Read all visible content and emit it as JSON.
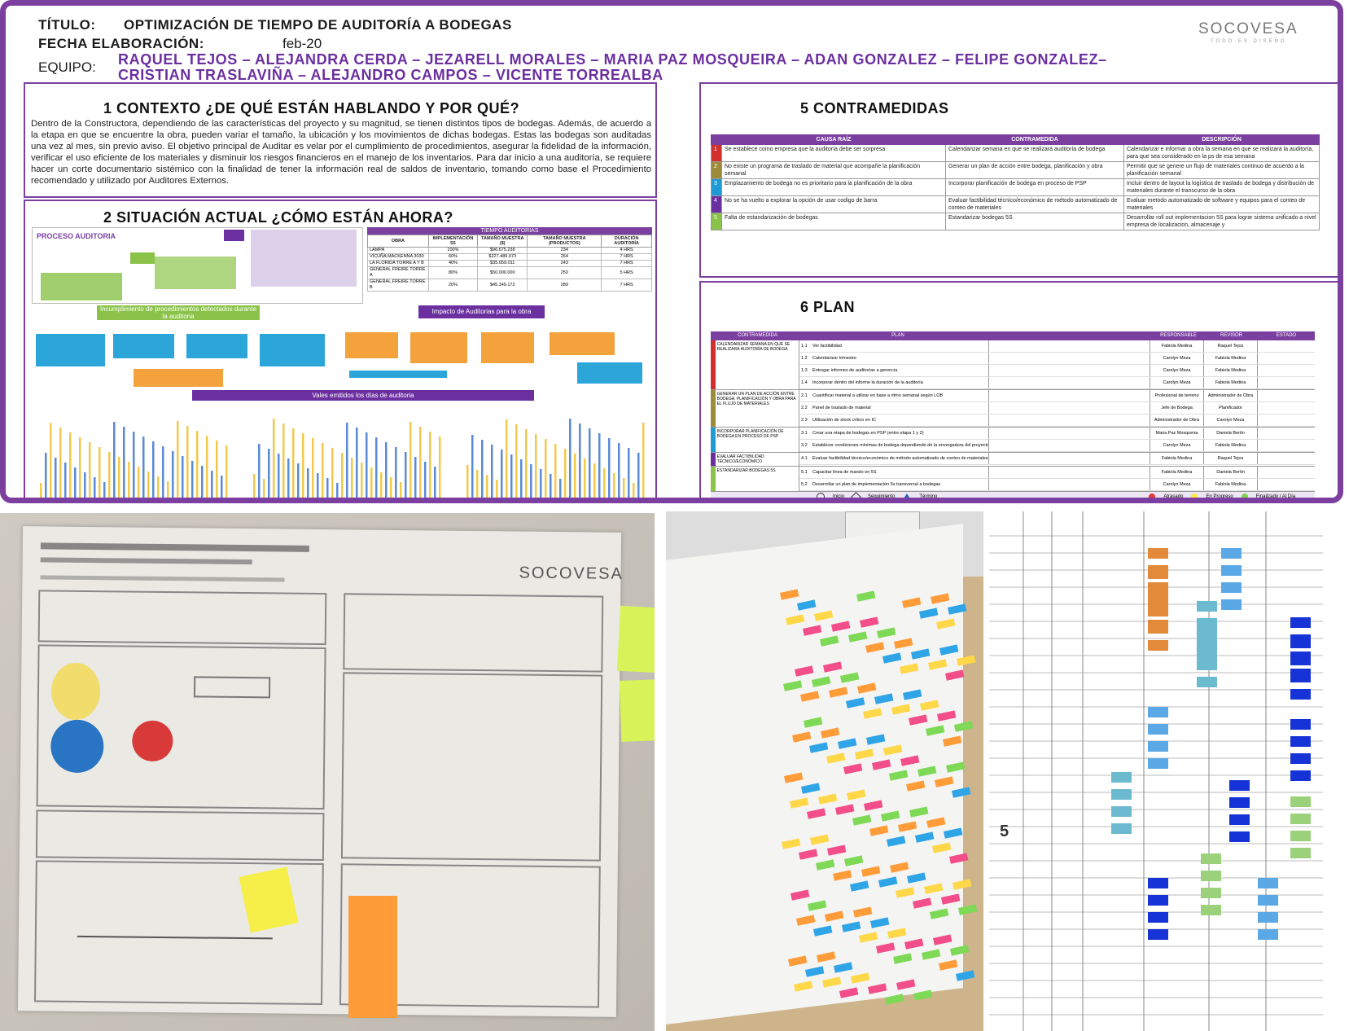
{
  "header": {
    "titulo_label": "TÍTULO:",
    "titulo_value": "OPTIMIZACIÓN DE TIEMPO DE AUDITORÍA A BODEGAS",
    "fecha_label": "FECHA ELABORACIÓN:",
    "fecha_value": "feb-20",
    "equipo_label": "EQUIPO:",
    "equipo_line1": "RAQUEL TEJOS – ALEJANDRA CERDA – JEZARELL MORALES – MARIA PAZ MOSQUEIRA – ADAN GONZALEZ – FELIPE GONZALEZ–",
    "equipo_line2": "CRISTIAN TRASLAVIÑA – ALEJANDRO CAMPOS – VICENTE TORREALBA",
    "logo": "SOCOVESA",
    "logo_sub": "TODO ES DISEÑO",
    "accent": "#7b3fa0"
  },
  "sec1": {
    "title": "1 CONTEXTO ¿DE QUÉ ESTÁN HABLANDO Y POR QUÉ?",
    "text": "Dentro de la Constructora, dependiendo de las características del proyecto y su magnitud, se tienen distintos tipos de bodegas. Además, de acuerdo a la etapa en que se encuentre la obra, pueden variar el tamaño, la ubicación y los movimientos de dichas bodegas. Estas las bodegas son auditadas una vez al mes, sin previo aviso. El objetivo principal de Auditar es velar por el cumplimiento de procedimientos, asegurar la fidelidad de la información, verificar el uso eficiente de los materiales y disminuir los riesgos financieros en el manejo de los inventarios. Para dar inicio a una auditoría, se requiere hacer un corte documentario sistémico con la finalidad de tener la información real de saldos de inventario, tomando como base el Procedimiento recomendado y utilizado por Auditores Externos."
  },
  "sec2": {
    "title": "2 SITUACIÓN ACTUAL ¿CÓMO ESTÁN AHORA?",
    "proceso": "PROCESO AUDITORIA",
    "table_title": "TIEMPO AUDITORIAS",
    "table_headers": [
      "OBRA",
      "IMPLEMENTACIÓN 5S",
      "TAMAÑO MUESTRA ($)",
      "TAMAÑO MUESTRA (PRODUCTOS)",
      "DURACIÓN AUDITORÍA"
    ],
    "table_rows": [
      [
        "LAMPA",
        "100%",
        "$96.675.238",
        "234",
        "4 HRS"
      ],
      [
        "VICUÑA MACKENNA 3030",
        "60%",
        "$227.489.973",
        "264",
        "7 HRS"
      ],
      [
        "LA FLORIDA TORRE A Y B",
        "40%",
        "$35.059.011",
        "243",
        "7 HRS"
      ],
      [
        "GENERAL FREIRE TORRE A",
        "80%",
        "$50.000.000",
        "250",
        "5 HRS"
      ],
      [
        "GENERAL FREIRE TORRE B",
        "20%",
        "$45.149.172",
        "289",
        "7 HRS"
      ]
    ],
    "incumplimiento": "Incumplimiento de procedimientos detectados durante la auditoria",
    "impacto": "Impacto de Auditorias para la obra",
    "vales": "Vales emitidos los días de auditoria"
  },
  "sec5": {
    "title": "5 CONTRAMEDIDAS",
    "headers": [
      "CAUSA RAÍZ",
      "CONTRAMEDIDA",
      "DESCRIPCIÓN"
    ],
    "rows": [
      {
        "n": "1",
        "color": "#d32f2f",
        "causa": "Se establece como empresa que la auditoría debe ser sorpresa",
        "contra": "Calendarizar semana en que se realizará auditoría de bodega",
        "desc": "Calendarizar e informar a obra la semana en que se realizará la auditoría, para que sea considerado en la ps de esa semana"
      },
      {
        "n": "2",
        "color": "#9e8b3a",
        "causa": "No existe un programa de traslado de material que acompañe la planificación semanal",
        "contra": "Generar un plan de acción entre bodega, planificación y obra",
        "desc": "Permitir que se genere un flujo de materiales continuo de acuerdo a la planificación semanal"
      },
      {
        "n": "3",
        "color": "#1e9ad6",
        "causa": "Emplazamiento de bodega no es prioritario para la planificación de la obra",
        "contra": "Incorporar planificación de bodega en proceso de PSP",
        "desc": "Incluir dentro de layout la logística de traslado de bodega y distribución de materiales durante el transcurso de la obra"
      },
      {
        "n": "4",
        "color": "#6b2fa0",
        "causa": "No se ha vuelto a explorar la opción de usar codigo de barra",
        "contra": "Evaluar factibilidad técnico/económico de método automatizado de conteo de materiales",
        "desc": "Evaluar metodo automatizado de software y equipos para el conteo de materiales"
      },
      {
        "n": "5",
        "color": "#8bc34a",
        "causa": "Falta de estandarización de bodegas",
        "contra": "Estandarizar bodegas 5S",
        "desc": "Desarrollar roll out implementacion 5S para lograr sistema unificado a nivel empresa de localizacion, almacenaje y"
      }
    ]
  },
  "sec6": {
    "title": "6 PLAN",
    "headers": [
      "CONTRAMEDIDA",
      "PLAN",
      "RESPONSABLE",
      "REVISOR",
      "ESTADO"
    ],
    "groups": [
      {
        "color": "#d32f2f",
        "contra": "CALENDARIZAR SEMANA EN QUE SE REALIZARÁ AUDITORÍA DE BODEGA",
        "items": [
          [
            "1.1",
            "Ver factibilidad",
            "Fabiola Medina",
            "Raquel Tejos"
          ],
          [
            "1.2",
            "Calendarizar trimestre",
            "Carolyn Meza",
            "Fabiola Medina"
          ],
          [
            "1.3",
            "Entregar informes de auditorías a gerencia",
            "Carolyn Meza",
            "Fabiola Medina"
          ],
          [
            "1.4",
            "Incorporar dentro del informe la duración de la auditoría",
            "Carolyn Meza",
            "Fabiola Medina"
          ]
        ]
      },
      {
        "color": "#9e8b3a",
        "contra": "GENERAR UN PLAN DE ACCIÓN ENTRE BODEGA, PLANIFICACIÓN Y OBRA PARA EL FLUJO DE MATERIALES",
        "items": [
          [
            "2.1",
            "Cuantificar material a utilizar en base a ritmo semanal según LOB",
            "Profesional de terreno",
            "Administrador de Obra"
          ],
          [
            "2.2",
            "Panel de traslado de material",
            "Jefe de Bodega",
            "Planificador"
          ],
          [
            "2.3",
            "Utilización de stock crítico en IC",
            "Administrador de Obra",
            "Carolyn Meza"
          ]
        ]
      },
      {
        "color": "#1e9ad6",
        "contra": "INCORPORAR PLANIFICACIÓN DE BODEGA EN PROCESO DE PSP",
        "items": [
          [
            "3.1",
            "Crear una etapa de bodegas en PSP (entre etapa 1 y 2)",
            "Maria Paz Mosqueira",
            "Daniela Bertin"
          ],
          [
            "3.2",
            "Establecer condiciones mínimas de bodega dependiendo de la envergadura del proyecto",
            "Carolyn Meza",
            "Fabiola Medina"
          ]
        ]
      },
      {
        "color": "#6b2fa0",
        "contra": "EVALUAR FACTIBILIDAD TÉCNICO/ECONÓMICO",
        "items": [
          [
            "4.1",
            "Evaluar factibilidad técnico/económico de método automatizado de conteo de materiales",
            "Fabiola Medina",
            "Raquel Tejos"
          ]
        ]
      },
      {
        "color": "#8bc34a",
        "contra": "ESTANDARIZAR BODEGAS 5S",
        "items": [
          [
            "5.1",
            "Capacitar linea de mando en 5S",
            "Fabiola Medina",
            "Daniela Bertin"
          ],
          [
            "5.2",
            "Desarrollar un plan de implementación 5s transversal a bodegas",
            "Carolyn Meza",
            "Fabiola Medina"
          ]
        ]
      }
    ],
    "legend": {
      "inicio": "Inicio",
      "seguimiento": "Seguimiento",
      "termino": "Término",
      "atrasado": "Atrasado",
      "progreso": "En Progreso",
      "finalizado": "Finalizado / Al Día"
    }
  },
  "photos": {
    "photo1_logo": "SOCOVESA",
    "photo3_number": "5"
  }
}
